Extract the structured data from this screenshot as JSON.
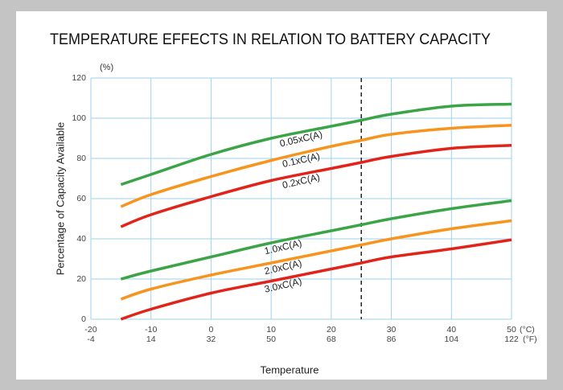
{
  "chart_data": {
    "type": "line",
    "title": "TEMPERATURE EFFECTS IN RELATION TO BATTERY CAPACITY",
    "xlabel": "Temperature",
    "ylabel": "Percentage of Capacity Available",
    "y_unit": "(%)",
    "x_unit": "(°C)",
    "x2_unit": "(°F)",
    "xlim": [
      -20,
      50
    ],
    "xticks": [
      -20,
      -10,
      0,
      10,
      20,
      30,
      40,
      50
    ],
    "x2lim": [
      -4,
      122
    ],
    "x2ticks": [
      -4,
      14,
      32,
      50,
      68,
      86,
      104,
      122
    ],
    "ylim": [
      0,
      120
    ],
    "yticks": [
      0,
      20,
      40,
      60,
      80,
      100,
      120
    ],
    "grid": true,
    "marker_x": 25,
    "x": [
      -15,
      -10,
      0,
      10,
      20,
      25,
      30,
      40,
      50
    ],
    "series": [
      {
        "name": "0.05xC(A)",
        "color": "#3aa447",
        "values": [
          67,
          72,
          82,
          90,
          96,
          99,
          102,
          106,
          107
        ]
      },
      {
        "name": "0.1xC(A)",
        "color": "#f7941d",
        "values": [
          56,
          62,
          71,
          79,
          86,
          89,
          92,
          95,
          96.5
        ]
      },
      {
        "name": "0.2xC(A)",
        "color": "#e2231a",
        "values": [
          46,
          52,
          61,
          69,
          75,
          78,
          81,
          85,
          86.5
        ]
      },
      {
        "name": "1.0xC(A)",
        "color": "#3aa447",
        "values": [
          20,
          24,
          31,
          38,
          44,
          47,
          50,
          55,
          59
        ]
      },
      {
        "name": "2.0xC(A)",
        "color": "#f7941d",
        "values": [
          10,
          15,
          22,
          28,
          34,
          37,
          40,
          45,
          49
        ]
      },
      {
        "name": "3.0xC(A)",
        "color": "#e2231a",
        "values": [
          0,
          5,
          13,
          19,
          25,
          28,
          31,
          35,
          39.5
        ]
      }
    ]
  }
}
